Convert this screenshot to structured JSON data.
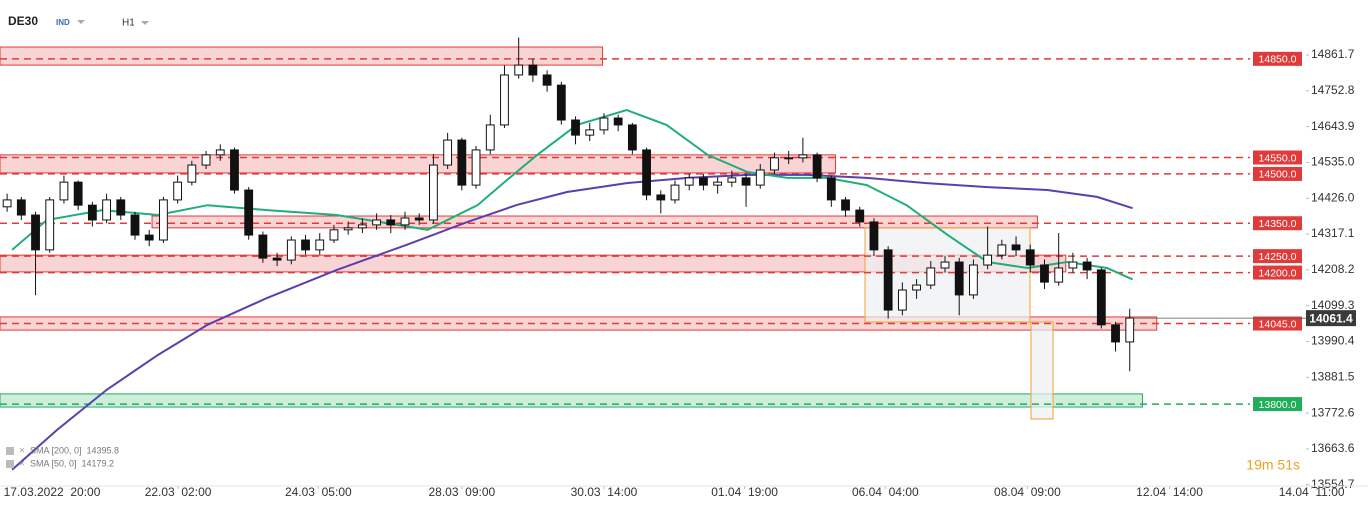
{
  "chart_data": {
    "type": "candlestick",
    "symbol": "DE30",
    "market": "IND",
    "timeframe": "H1",
    "ylim": [
      13553.9,
      15029
    ],
    "xlim": [
      -0.5,
      94.5
    ],
    "grid": false,
    "yticks": [
      {
        "value": 14861.7,
        "label": "14861.7"
      },
      {
        "value": 14752.8,
        "label": "14752.8"
      },
      {
        "value": 14643.9,
        "label": "14643.9"
      },
      {
        "value": 14535.0,
        "label": "14535.0"
      },
      {
        "value": 14426.0,
        "label": "14426.0"
      },
      {
        "value": 14317.1,
        "label": "14317.1"
      },
      {
        "value": 14208.2,
        "label": "14208.2"
      },
      {
        "value": 14099.3,
        "label": "14099.3"
      },
      {
        "value": 13990.4,
        "label": "13990.4"
      },
      {
        "value": 13881.5,
        "label": "13881.5"
      },
      {
        "value": 13772.6,
        "label": "13772.6"
      },
      {
        "value": 13663.6,
        "label": "13663.6"
      },
      {
        "value": 13554.7,
        "label": "13554.7"
      }
    ],
    "xticks": [
      {
        "value": 3.16,
        "label": "17.03.2022  20:00"
      },
      {
        "value": 12.03,
        "label": "22.03  02:00"
      },
      {
        "value": 21.9,
        "label": "24.03  05:00"
      },
      {
        "value": 32.0,
        "label": "28.03  09:00"
      },
      {
        "value": 42.0,
        "label": "30.03  14:00"
      },
      {
        "value": 51.9,
        "label": "01.04  19:00"
      },
      {
        "value": 61.8,
        "label": "06.04  04:00"
      },
      {
        "value": 71.8,
        "label": "08.04  09:00"
      },
      {
        "value": 81.8,
        "label": "12.04  14:00"
      },
      {
        "value": 91.8,
        "label": "14.04  11:00"
      }
    ],
    "up_color": "#ffffff",
    "down_color": "#111111",
    "open": [
      14400,
      14421,
      14375,
      14269,
      14421,
      14475,
      14405,
      14360,
      14421,
      14375,
      14314,
      14299,
      14421,
      14475,
      14527,
      14558,
      14573,
      14451,
      14314,
      14244,
      14238,
      14299,
      14269,
      14299,
      14330,
      14336,
      14345,
      14360,
      14345,
      14366,
      14360,
      14527,
      14603,
      14466,
      14573,
      14649,
      14801,
      14831,
      14801,
      14770,
      14664,
      14618,
      14634,
      14670,
      14649,
      14573,
      14436,
      14421,
      14466,
      14488,
      14466,
      14475,
      14488,
      14466,
      14512,
      14549,
      14549,
      14558,
      14488,
      14421,
      14390,
      14354,
      14269,
      14086,
      14147,
      14162,
      14214,
      14232,
      14132,
      14223,
      14253,
      14284,
      14269,
      14223,
      14171,
      14214,
      14232,
      14208,
      14041,
      13989
    ],
    "high": [
      14440,
      14430,
      14385,
      14430,
      14495,
      14480,
      14415,
      14440,
      14430,
      14385,
      14330,
      14430,
      14495,
      14540,
      14570,
      14590,
      14580,
      14460,
      14325,
      14260,
      14310,
      14315,
      14320,
      14345,
      14355,
      14365,
      14380,
      14375,
      14385,
      14380,
      14560,
      14625,
      14610,
      14585,
      14680,
      14830,
      14915,
      14850,
      14815,
      14780,
      14675,
      14655,
      14685,
      14680,
      14655,
      14580,
      14450,
      14480,
      14500,
      14500,
      14490,
      14510,
      14500,
      14530,
      14565,
      14570,
      14610,
      14565,
      14495,
      14430,
      14400,
      14365,
      14280,
      14170,
      14180,
      14235,
      14250,
      14245,
      14240,
      14340,
      14300,
      14310,
      14285,
      14240,
      14320,
      14260,
      14245,
      14215,
      14050,
      14090
    ],
    "low": [
      14385,
      14360,
      14131,
      14260,
      14410,
      14390,
      14340,
      14350,
      14360,
      14300,
      14280,
      14290,
      14410,
      14465,
      14515,
      14540,
      14440,
      14300,
      14230,
      14220,
      14225,
      14255,
      14255,
      14290,
      14315,
      14320,
      14330,
      14320,
      14330,
      14345,
      14350,
      14515,
      14450,
      14455,
      14560,
      14640,
      14790,
      14780,
      14750,
      14650,
      14590,
      14600,
      14620,
      14630,
      14560,
      14420,
      14380,
      14410,
      14450,
      14450,
      14440,
      14460,
      14400,
      14455,
      14500,
      14530,
      14535,
      14475,
      14400,
      14370,
      14340,
      14250,
      14060,
      14070,
      14120,
      14150,
      14200,
      14070,
      14120,
      14210,
      14240,
      14250,
      14200,
      14150,
      14160,
      14200,
      14180,
      14030,
      13960,
      13900
    ],
    "close": [
      14421,
      14375,
      14269,
      14421,
      14475,
      14405,
      14360,
      14421,
      14375,
      14314,
      14299,
      14421,
      14475,
      14527,
      14558,
      14573,
      14451,
      14314,
      14244,
      14238,
      14299,
      14269,
      14299,
      14330,
      14336,
      14345,
      14360,
      14345,
      14366,
      14360,
      14527,
      14603,
      14466,
      14573,
      14649,
      14801,
      14831,
      14801,
      14770,
      14664,
      14618,
      14634,
      14670,
      14649,
      14573,
      14436,
      14421,
      14466,
      14488,
      14466,
      14475,
      14488,
      14466,
      14512,
      14549,
      14549,
      14558,
      14488,
      14421,
      14390,
      14354,
      14269,
      14086,
      14147,
      14162,
      14214,
      14232,
      14132,
      14223,
      14253,
      14284,
      14269,
      14223,
      14171,
      14214,
      14232,
      14208,
      14041,
      13989,
      14061.4
    ],
    "indicators": [
      {
        "name": "SMA [200, 0]",
        "color": "#5b3fb0",
        "x": [
          0.35,
          3.5,
          7,
          10.6,
          14.1,
          18.3,
          23.2,
          28.1,
          32.4,
          35.9,
          39.4,
          43.6,
          47.9,
          52.1,
          56.3,
          60.5,
          64.7,
          69,
          73.2,
          76.7,
          79.2
        ],
        "values": [
          13600,
          13721,
          13843,
          13949,
          14041,
          14123,
          14208,
          14284,
          14354,
          14406,
          14445,
          14472,
          14488,
          14497,
          14497,
          14488,
          14472,
          14460,
          14451,
          14430,
          14395.8
        ]
      },
      {
        "name": "SMA [50, 0]",
        "color": "#1fae7a",
        "x": [
          0.35,
          2.8,
          6.7,
          10.6,
          14.1,
          18.3,
          23.2,
          29.6,
          33.1,
          35.2,
          37.3,
          40.1,
          43.6,
          46.4,
          49.3,
          52.1,
          54.9,
          57.7,
          60.5,
          63.3,
          66.2,
          69,
          71.8,
          74.6,
          77.4,
          79.2
        ],
        "values": [
          14269,
          14360,
          14390,
          14375,
          14405,
          14390,
          14375,
          14330,
          14405,
          14482,
          14558,
          14649,
          14694,
          14649,
          14558,
          14506,
          14488,
          14488,
          14466,
          14405,
          14314,
          14232,
          14214,
          14232,
          14214,
          14179.2
        ]
      }
    ],
    "zones": [
      {
        "range": [
          14831,
          14886
        ],
        "from": -0.5,
        "to": 41.9,
        "color": "#e03b3b"
      },
      {
        "range": [
          14503,
          14558
        ],
        "from": -0.5,
        "to": 58.3,
        "color": "#e03b3b"
      },
      {
        "range": [
          14336,
          14372
        ],
        "from": 10.2,
        "to": 72.5,
        "color": "#e03b3b"
      },
      {
        "range": [
          14202,
          14253
        ],
        "from": -0.5,
        "to": 74.5,
        "color": "#e03b3b"
      },
      {
        "range": [
          14025,
          14065
        ],
        "from": -0.5,
        "to": 80.9,
        "color": "#e03b3b"
      },
      {
        "range": [
          13791,
          13831
        ],
        "from": -0.5,
        "to": 79.9,
        "color": "#1fae5a"
      }
    ],
    "levels": [
      {
        "value": 14850,
        "label": "14850.0",
        "color": "#e03b3b"
      },
      {
        "value": 14550,
        "label": "14550.0",
        "color": "#e03b3b"
      },
      {
        "value": 14500,
        "label": "14500.0",
        "color": "#e03b3b"
      },
      {
        "value": 14350,
        "label": "14350.0",
        "color": "#e03b3b"
      },
      {
        "value": 14250,
        "label": "14250.0",
        "color": "#e03b3b"
      },
      {
        "value": 14200,
        "label": "14200.0",
        "color": "#e03b3b"
      },
      {
        "value": 14045,
        "label": "14045.0",
        "color": "#e03b3b"
      },
      {
        "value": 13800,
        "label": "13800.0",
        "color": "#1fae5a"
      }
    ],
    "current_price": 14061.4,
    "countdown": "19m 51s"
  }
}
